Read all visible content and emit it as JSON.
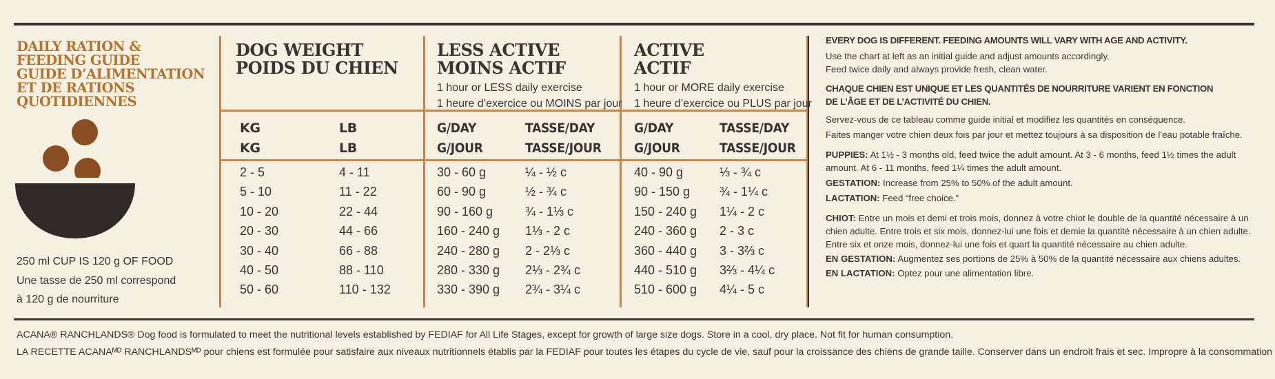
{
  "guide": {
    "title_lines": [
      "DAILY RATION &",
      "FEEDING GUIDE",
      "GUIDE D’ALIMENTATION",
      "ET DE RATIONS",
      "QUOTIDIENNES"
    ],
    "cup_note_lines": [
      "250 ml CUP IS 120 g OF FOOD",
      "Une tasse de 250 ml correspond",
      "à 120 g de nourriture"
    ]
  },
  "columns": {
    "weight": {
      "title_en": "DOG WEIGHT",
      "title_fr": "POIDS DU CHIEN",
      "unit_kg": "KG",
      "unit_kg_fr": "KG",
      "unit_lb": "LB",
      "unit_lb_fr": "LB"
    },
    "less_active": {
      "title_en": "LESS ACTIVE",
      "title_fr": "MOINS ACTIF",
      "sub_en": "1 hour or LESS daily exercise",
      "sub_fr": "1 heure d’exercice ou MOINS par jour",
      "unit_g": "G/DAY",
      "unit_g_fr": "G/JOUR",
      "unit_cup": "TASSE/DAY",
      "unit_cup_fr": "TASSE/JOUR"
    },
    "active": {
      "title_en": "ACTIVE",
      "title_fr": "ACTIF",
      "sub_en": "1 hour or MORE daily exercise",
      "sub_fr": "1 heure d’exercice ou PLUS par jour",
      "unit_g": "G/DAY",
      "unit_g_fr": "G/JOUR",
      "unit_cup": "TASSE/DAY",
      "unit_cup_fr": "TASSE/JOUR"
    }
  },
  "rows": [
    {
      "kg": "2 - 5",
      "lb": "4 - 11",
      "less_g": "30 - 60 g",
      "less_c": "¼ - ½ c",
      "act_g": "40 - 90 g",
      "act_c": "⅓ - ¾ c"
    },
    {
      "kg": "5 - 10",
      "lb": "11 - 22",
      "less_g": "60 - 90 g",
      "less_c": "½ - ¾ c",
      "act_g": "90 - 150 g",
      "act_c": "¾ - 1¼ c"
    },
    {
      "kg": "10 - 20",
      "lb": "22 - 44",
      "less_g": "90 - 160 g",
      "less_c": "¾ - 1⅓ c",
      "act_g": "150 - 240 g",
      "act_c": "1¼ - 2 c"
    },
    {
      "kg": "20 - 30",
      "lb": "44 - 66",
      "less_g": "160 - 240 g",
      "less_c": "1⅓ - 2 c",
      "act_g": "240 - 360 g",
      "act_c": "2 - 3 c"
    },
    {
      "kg": "30 - 40",
      "lb": "66 - 88",
      "less_g": "240 - 280 g",
      "less_c": "2 - 2⅓ c",
      "act_g": "360 - 440 g",
      "act_c": "3 - 3⅔ c"
    },
    {
      "kg": "40 - 50",
      "lb": "88 - 110",
      "less_g": "280 - 330 g",
      "less_c": "2⅓ - 2¾ c",
      "act_g": "440 - 510 g",
      "act_c": "3⅔ - 4¼ c"
    },
    {
      "kg": "50 - 60",
      "lb": "110 - 132",
      "less_g": "330 - 390 g",
      "less_c": "2¾ - 3¼ c",
      "act_g": "510 - 600 g",
      "act_c": "4¼ - 5 c"
    }
  ],
  "notes": {
    "en_heading": "EVERY DOG IS DIFFERENT. FEEDING AMOUNTS WILL VARY WITH AGE AND ACTIVITY.",
    "en_p1": "Use the chart at left as an initial guide and adjust amounts accordingly.",
    "en_p2": "Feed twice daily and always provide fresh, clean water.",
    "fr_heading_1": "CHAQUE CHIEN EST UNIQUE ET LES QUANTITÉS DE NOURRITURE VARIENT EN FONCTION",
    "fr_heading_2": "DE L’ÂGE ET DE L’ACTIVITÉ DU CHIEN.",
    "fr_p1": "Servez-vous de ce tableau comme guide initial et modifiez les quantités en conséquence.",
    "fr_p2": "Faites manger votre chien deux fois par jour et mettez toujours à sa disposition de l’eau potable fraîche.",
    "puppies_label": "PUPPIES:",
    "puppies_l1": " At 1½ - 3 months old, feed twice the adult amount. At 3 - 6 months, feed 1½ times the adult",
    "puppies_l2": "amount. At  6 - 11 months, feed 1¼ times the adult amount.",
    "gestation_label": "GESTATION:",
    "gestation_text": " Increase from 25% to 50% of the adult amount.",
    "lactation_label": "LACTATION:",
    "lactation_text": " Feed “free choice.”",
    "chiot_label": "CHIOT:",
    "chiot_l1": " Entre un mois et demi et trois mois, donnez à votre chiot le double de la quantité nécessaire à un",
    "chiot_l2": "chien adulte. Entre trois et six mois, donnez-lui une fois et demie la quantité nécessaire à un chien adulte.",
    "chiot_l3": "Entre six et onze mois, donnez-lui une fois et quart la quantité nécessaire au chien adulte.",
    "engest_label": "EN GESTATION:",
    "engest_text": " Augmentez ses portions de 25% à 50% de la quantité nécessaire aux chiens adultes.",
    "enlact_label": "EN LACTATION:",
    "enlact_text": " Optez pour une alimentation libre."
  },
  "footer": {
    "line1": "ACANA® RANCHLANDS® Dog food is formulated to meet the nutritional levels established by FEDIAF for All Life Stages, except for growth of large size dogs. Store in a cool, dry place. Not fit for human consumption.",
    "line2": "LA RECETTE ACANAᴹᴰ RANCHLANDSᴹᴰ pour chiens est formulée pour satisfaire aux niveaux nutritionnels établis par la FEDIAF pour toutes les étapes du cycle de vie, sauf pour la croissance des chiens de grande taille. Conserver dans un endroit frais et sec. Impropre à la consommation humaine."
  },
  "colors": {
    "accent": "#c28750",
    "title": "#b4742f",
    "dark": "#3a3331",
    "background": "#f5f0e2"
  }
}
